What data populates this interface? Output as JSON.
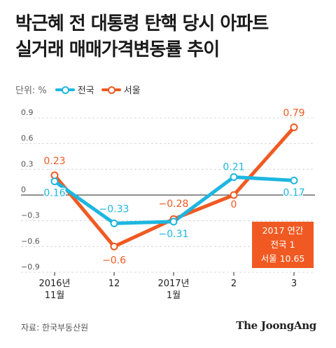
{
  "title": {
    "line1": "박근혜 전 대통령 탄핵 당시 아파트",
    "line2": "실거래 매매가격변동률 추이"
  },
  "legend": {
    "unit": "단위: %",
    "series1": "전국",
    "series2": "서울"
  },
  "annual_box": {
    "line1": "2017 연간",
    "line2": "전국 1",
    "line3": "서울 10.65"
  },
  "source": "자료: 한국부동산원",
  "logo": "The JoongAng",
  "colors": {
    "national": "#1eb6e0",
    "seoul": "#f05a22",
    "text": "#222222"
  },
  "chart_data": {
    "type": "line",
    "categories": [
      [
        "2016년",
        "11월"
      ],
      [
        "12"
      ],
      [
        "2017년",
        "1월"
      ],
      [
        "2"
      ],
      [
        "3"
      ]
    ],
    "series": [
      {
        "name": "전국",
        "values": [
          0.16,
          -0.33,
          -0.31,
          0.21,
          0.17
        ],
        "labels": [
          "0.16",
          "−0.33",
          "−0.31",
          "0.21",
          "0.17"
        ]
      },
      {
        "name": "서울",
        "values": [
          0.23,
          -0.6,
          -0.28,
          0,
          0.79
        ],
        "labels": [
          "0.23",
          "−0.6",
          "−0.28",
          "0",
          "0.79"
        ]
      }
    ],
    "yticks": [
      0.9,
      0.6,
      0.3,
      0,
      -0.3,
      -0.6,
      -0.9
    ],
    "ytick_labels": [
      "0.9",
      "0.6",
      "0.3",
      "0",
      "−0.3",
      "−0.6",
      "−0.9"
    ],
    "ylim": [
      -0.9,
      0.9
    ],
    "xlabel": "",
    "ylabel": "",
    "grid": "horizontal"
  }
}
